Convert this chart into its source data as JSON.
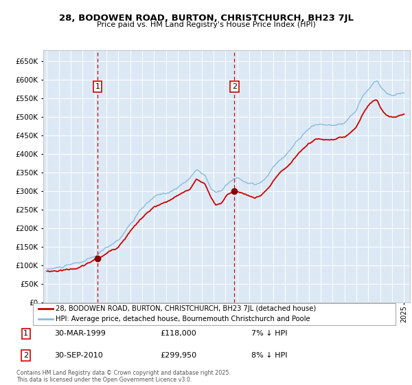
{
  "title": "28, BODOWEN ROAD, BURTON, CHRISTCHURCH, BH23 7JL",
  "subtitle": "Price paid vs. HM Land Registry's House Price Index (HPI)",
  "legend_line1": "28, BODOWEN ROAD, BURTON, CHRISTCHURCH, BH23 7JL (detached house)",
  "legend_line2": "HPI: Average price, detached house, Bournemouth Christchurch and Poole",
  "annotation1_label": "1",
  "annotation1_date": "30-MAR-1999",
  "annotation1_price": "£118,000",
  "annotation1_hpi": "7% ↓ HPI",
  "annotation2_label": "2",
  "annotation2_date": "30-SEP-2010",
  "annotation2_price": "£299,950",
  "annotation2_hpi": "8% ↓ HPI",
  "footnote": "Contains HM Land Registry data © Crown copyright and database right 2025.\nThis data is licensed under the Open Government Licence v3.0.",
  "ylim": [
    0,
    680000
  ],
  "xlim_start": 1994.7,
  "xlim_end": 2025.5,
  "vline1_x": 1999.25,
  "vline2_x": 2010.75,
  "sale1_x": 1999.25,
  "sale1_y": 118000,
  "sale2_x": 2010.75,
  "sale2_y": 299950,
  "bg_color": "#dce9f5",
  "grid_color": "#ffffff",
  "red_line_color": "#cc0000",
  "blue_line_color": "#88bbdd",
  "vline_color": "#cc0000",
  "marker_color": "#880000",
  "annotation_box_color": "#cc0000",
  "hpi_anchors": [
    [
      1995.0,
      88000
    ],
    [
      1996.0,
      92000
    ],
    [
      1997.0,
      97000
    ],
    [
      1998.0,
      104000
    ],
    [
      1999.0,
      115000
    ],
    [
      2000.0,
      138000
    ],
    [
      2001.0,
      160000
    ],
    [
      2002.0,
      205000
    ],
    [
      2003.0,
      245000
    ],
    [
      2004.0,
      272000
    ],
    [
      2005.0,
      282000
    ],
    [
      2006.0,
      298000
    ],
    [
      2007.0,
      320000
    ],
    [
      2007.6,
      348000
    ],
    [
      2008.3,
      330000
    ],
    [
      2008.8,
      295000
    ],
    [
      2009.2,
      285000
    ],
    [
      2009.7,
      295000
    ],
    [
      2010.0,
      308000
    ],
    [
      2010.5,
      320000
    ],
    [
      2011.0,
      328000
    ],
    [
      2011.5,
      320000
    ],
    [
      2012.0,
      312000
    ],
    [
      2012.5,
      308000
    ],
    [
      2013.0,
      312000
    ],
    [
      2013.5,
      325000
    ],
    [
      2014.0,
      348000
    ],
    [
      2014.5,
      365000
    ],
    [
      2015.0,
      380000
    ],
    [
      2015.5,
      395000
    ],
    [
      2016.0,
      415000
    ],
    [
      2016.5,
      432000
    ],
    [
      2017.0,
      448000
    ],
    [
      2017.5,
      458000
    ],
    [
      2018.0,
      462000
    ],
    [
      2018.5,
      458000
    ],
    [
      2019.0,
      458000
    ],
    [
      2019.5,
      462000
    ],
    [
      2020.0,
      468000
    ],
    [
      2020.5,
      485000
    ],
    [
      2021.0,
      500000
    ],
    [
      2021.5,
      535000
    ],
    [
      2022.0,
      558000
    ],
    [
      2022.5,
      578000
    ],
    [
      2022.75,
      582000
    ],
    [
      2023.0,
      568000
    ],
    [
      2023.5,
      548000
    ],
    [
      2024.0,
      542000
    ],
    [
      2024.5,
      548000
    ],
    [
      2025.0,
      550000
    ]
  ],
  "red_anchors": [
    [
      1995.0,
      83000
    ],
    [
      1996.0,
      86000
    ],
    [
      1997.0,
      91000
    ],
    [
      1998.0,
      98000
    ],
    [
      1999.25,
      118000
    ],
    [
      2000.0,
      130000
    ],
    [
      2001.0,
      152000
    ],
    [
      2002.0,
      196000
    ],
    [
      2003.0,
      232000
    ],
    [
      2004.0,
      258000
    ],
    [
      2005.0,
      268000
    ],
    [
      2006.0,
      282000
    ],
    [
      2007.0,
      302000
    ],
    [
      2007.6,
      328000
    ],
    [
      2008.3,
      315000
    ],
    [
      2008.8,
      280000
    ],
    [
      2009.2,
      260000
    ],
    [
      2009.7,
      268000
    ],
    [
      2010.0,
      282000
    ],
    [
      2010.75,
      299950
    ],
    [
      2011.0,
      298000
    ],
    [
      2011.5,
      292000
    ],
    [
      2012.0,
      286000
    ],
    [
      2012.5,
      282000
    ],
    [
      2013.0,
      288000
    ],
    [
      2013.5,
      298000
    ],
    [
      2014.0,
      318000
    ],
    [
      2014.5,
      335000
    ],
    [
      2015.0,
      350000
    ],
    [
      2015.5,
      365000
    ],
    [
      2016.0,
      385000
    ],
    [
      2016.5,
      402000
    ],
    [
      2017.0,
      418000
    ],
    [
      2017.5,
      428000
    ],
    [
      2018.0,
      432000
    ],
    [
      2018.5,
      428000
    ],
    [
      2019.0,
      428000
    ],
    [
      2019.5,
      432000
    ],
    [
      2020.0,
      435000
    ],
    [
      2020.5,
      450000
    ],
    [
      2021.0,
      465000
    ],
    [
      2021.5,
      498000
    ],
    [
      2022.0,
      525000
    ],
    [
      2022.5,
      538000
    ],
    [
      2022.75,
      540000
    ],
    [
      2023.0,
      522000
    ],
    [
      2023.5,
      500000
    ],
    [
      2024.0,
      494000
    ],
    [
      2024.5,
      498000
    ],
    [
      2025.0,
      502000
    ]
  ]
}
